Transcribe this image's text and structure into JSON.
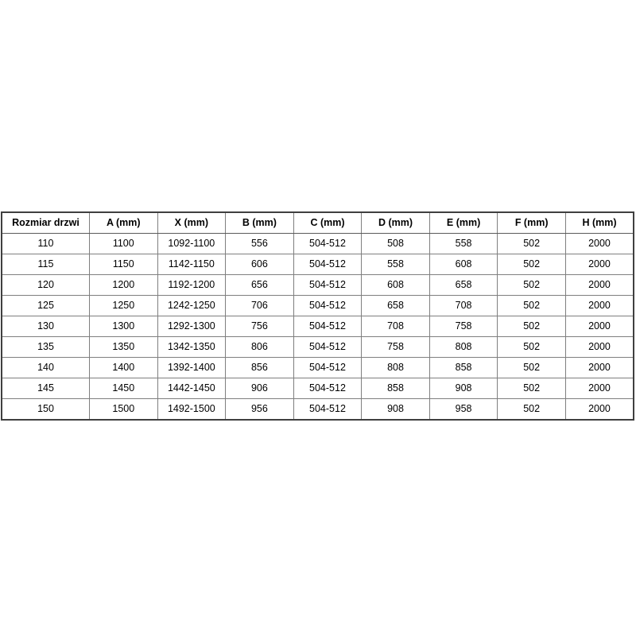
{
  "table": {
    "name": "door-size-specification-table",
    "columns": [
      "Rozmiar drzwi",
      "A (mm)",
      "X (mm)",
      "B (mm)",
      "C (mm)",
      "D (mm)",
      "E (mm)",
      "F (mm)",
      "H (mm)"
    ],
    "rows": [
      [
        "110",
        "1100",
        "1092-1100",
        "556",
        "504-512",
        "508",
        "558",
        "502",
        "2000"
      ],
      [
        "115",
        "1150",
        "1142-1150",
        "606",
        "504-512",
        "558",
        "608",
        "502",
        "2000"
      ],
      [
        "120",
        "1200",
        "1192-1200",
        "656",
        "504-512",
        "608",
        "658",
        "502",
        "2000"
      ],
      [
        "125",
        "1250",
        "1242-1250",
        "706",
        "504-512",
        "658",
        "708",
        "502",
        "2000"
      ],
      [
        "130",
        "1300",
        "1292-1300",
        "756",
        "504-512",
        "708",
        "758",
        "502",
        "2000"
      ],
      [
        "135",
        "1350",
        "1342-1350",
        "806",
        "504-512",
        "758",
        "808",
        "502",
        "2000"
      ],
      [
        "140",
        "1400",
        "1392-1400",
        "856",
        "504-512",
        "808",
        "858",
        "502",
        "2000"
      ],
      [
        "145",
        "1450",
        "1442-1450",
        "906",
        "504-512",
        "858",
        "908",
        "502",
        "2000"
      ],
      [
        "150",
        "1500",
        "1492-1500",
        "956",
        "504-512",
        "908",
        "958",
        "502",
        "2000"
      ]
    ],
    "colors": {
      "border_outer": "#3f3f3f",
      "border_inner": "#7f7f7f",
      "background": "#ffffff",
      "text": "#000000"
    }
  }
}
